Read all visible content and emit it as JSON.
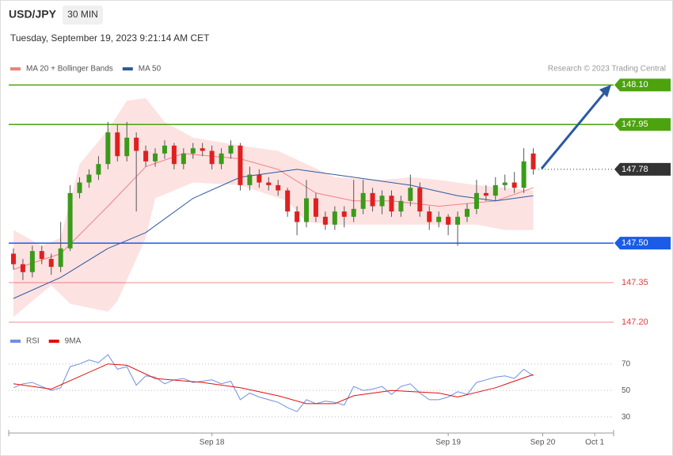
{
  "chart_data": {
    "type": "candlestick",
    "title": "USD/JPY",
    "timeframe": "30 MIN",
    "subtitle": "Tuesday, September 19, 2023 9:21:14 AM CET",
    "credit": "Research © 2023 Trading Central",
    "xlim": [
      -0.5,
      63.5
    ],
    "xticks": [
      {
        "value": 21,
        "label": "Sep 18"
      },
      {
        "value": 46,
        "label": "Sep 19"
      },
      {
        "value": 56,
        "label": "Sep 20"
      },
      {
        "value": 61.5,
        "label": "Oct 1"
      }
    ],
    "ylim": [
      147.17,
      148.14
    ],
    "candles": {
      "up_color": "#3a9b1a",
      "down_color": "#e02020",
      "open": [
        147.46,
        147.42,
        147.39,
        147.47,
        147.44,
        147.41,
        147.48,
        147.69,
        147.73,
        147.76,
        147.8,
        147.92,
        147.83,
        147.9,
        147.85,
        147.81,
        147.84,
        147.87,
        147.8,
        147.84,
        147.86,
        147.85,
        147.8,
        147.84,
        147.87,
        147.72,
        147.76,
        147.73,
        147.72,
        147.7,
        147.62,
        147.58,
        147.67,
        147.6,
        147.57,
        147.62,
        147.6,
        147.63,
        147.69,
        147.64,
        147.68,
        147.62,
        147.66,
        147.71,
        147.62,
        147.58,
        147.6,
        147.57,
        147.6,
        147.63,
        147.69,
        147.68,
        147.72,
        147.73,
        147.71,
        147.84
      ],
      "high": [
        147.48,
        147.44,
        147.49,
        147.49,
        147.46,
        147.58,
        147.72,
        147.75,
        147.78,
        147.83,
        147.96,
        147.95,
        147.96,
        147.92,
        147.87,
        147.86,
        147.89,
        147.88,
        147.86,
        147.88,
        147.88,
        147.87,
        147.86,
        147.89,
        147.88,
        147.79,
        147.78,
        147.75,
        147.74,
        147.71,
        147.64,
        147.74,
        147.69,
        147.62,
        147.64,
        147.64,
        147.74,
        147.74,
        147.71,
        147.7,
        147.7,
        147.68,
        147.76,
        147.73,
        147.64,
        147.62,
        147.61,
        147.62,
        147.65,
        147.74,
        147.72,
        147.75,
        147.76,
        147.77,
        147.86,
        147.86
      ],
      "low": [
        147.4,
        147.36,
        147.37,
        147.42,
        147.38,
        147.39,
        147.47,
        147.67,
        147.71,
        147.74,
        147.78,
        147.81,
        147.81,
        147.62,
        147.79,
        147.79,
        147.82,
        147.78,
        147.78,
        147.82,
        147.83,
        147.78,
        147.78,
        147.82,
        147.7,
        147.7,
        147.71,
        147.7,
        147.68,
        147.6,
        147.53,
        147.56,
        147.58,
        147.55,
        147.55,
        147.56,
        147.58,
        147.61,
        147.62,
        147.61,
        147.6,
        147.6,
        147.64,
        147.6,
        147.55,
        147.56,
        147.53,
        147.49,
        147.58,
        147.61,
        147.66,
        147.66,
        147.7,
        147.69,
        147.69,
        147.76
      ],
      "close": [
        147.42,
        147.39,
        147.47,
        147.44,
        147.41,
        147.48,
        147.69,
        147.73,
        147.76,
        147.8,
        147.92,
        147.83,
        147.9,
        147.85,
        147.81,
        147.84,
        147.87,
        147.8,
        147.84,
        147.86,
        147.85,
        147.8,
        147.84,
        147.87,
        147.72,
        147.76,
        147.73,
        147.72,
        147.7,
        147.62,
        147.58,
        147.67,
        147.6,
        147.57,
        147.62,
        147.6,
        147.63,
        147.69,
        147.64,
        147.68,
        147.62,
        147.66,
        147.71,
        147.62,
        147.58,
        147.6,
        147.57,
        147.6,
        147.63,
        147.69,
        147.68,
        147.72,
        147.73,
        147.71,
        147.81,
        147.78
      ]
    },
    "bollinger": {
      "fill": "#fde2e2",
      "upper": {
        "x": [
          0,
          3,
          5,
          7,
          10,
          12,
          14,
          16,
          19,
          24,
          28,
          31,
          34,
          39,
          42,
          45,
          49,
          52,
          55
        ],
        "values": [
          147.55,
          147.49,
          147.52,
          147.8,
          147.93,
          148.04,
          148.05,
          147.96,
          147.9,
          147.87,
          147.85,
          147.8,
          147.75,
          147.74,
          147.75,
          147.74,
          147.72,
          147.71,
          147.7
        ]
      },
      "lower": {
        "x": [
          0,
          4,
          6,
          10,
          11,
          14,
          15,
          19,
          24,
          29,
          31,
          34,
          39,
          44,
          49,
          52,
          55
        ],
        "values": [
          147.22,
          147.34,
          147.27,
          147.24,
          147.28,
          147.52,
          147.67,
          147.73,
          147.72,
          147.66,
          147.58,
          147.57,
          147.57,
          147.57,
          147.57,
          147.55,
          147.55
        ]
      }
    },
    "series": [
      {
        "name": "MA 20 + Bollinger Bands",
        "color": "#f08080",
        "x": [
          0,
          5,
          10,
          14,
          18,
          24,
          28,
          32,
          36,
          40,
          45,
          51,
          55
        ],
        "values": [
          147.4,
          147.46,
          147.64,
          147.79,
          147.84,
          147.82,
          147.78,
          147.69,
          147.66,
          147.66,
          147.64,
          147.66,
          147.71
        ]
      },
      {
        "name": "MA 50",
        "color": "#2c5aa0",
        "x": [
          0,
          5,
          10,
          14,
          19,
          24,
          30,
          36,
          42,
          47,
          51,
          55
        ],
        "values": [
          147.29,
          147.37,
          147.48,
          147.54,
          147.67,
          147.75,
          147.78,
          147.75,
          147.72,
          147.68,
          147.66,
          147.68
        ]
      }
    ],
    "levels": [
      {
        "value": 148.1,
        "label": "148.10",
        "color": "#4ca30d",
        "tag": true
      },
      {
        "value": 147.95,
        "label": "147.95",
        "color": "#4ca30d",
        "tag": true
      },
      {
        "value": 147.78,
        "label": "147.78",
        "color": "#333333",
        "tag": true,
        "dotted": true
      },
      {
        "value": 147.5,
        "label": "147.50",
        "color": "#1a5ce8",
        "tag": true
      },
      {
        "value": 147.35,
        "label": "147.35",
        "color": "#e04040",
        "tag": false
      },
      {
        "value": 147.2,
        "label": "147.20",
        "color": "#e04040",
        "tag": false
      }
    ],
    "rsi": {
      "ylim": [
        22,
        80
      ],
      "yticks": [
        70,
        50,
        30
      ],
      "series": [
        {
          "name": "RSI",
          "color": "#6f8fe0",
          "values": [
            52,
            55,
            56,
            53,
            50,
            52,
            68,
            70,
            73,
            71,
            77,
            66,
            68,
            54,
            61,
            60,
            55,
            58,
            59,
            56,
            57,
            58,
            55,
            57,
            43,
            48,
            45,
            43,
            41,
            37,
            34,
            43,
            40,
            42,
            41,
            39,
            53,
            50,
            51,
            53,
            47,
            53,
            55,
            48,
            43,
            43,
            45,
            49,
            47,
            56,
            58,
            60,
            61,
            59,
            66,
            61
          ]
        },
        {
          "name": "9MA",
          "color": "#e01010",
          "x": [
            0,
            4,
            10,
            12,
            15,
            20,
            24,
            28,
            31,
            34,
            36,
            40,
            45,
            47,
            51,
            55
          ],
          "values": [
            55,
            51,
            70,
            69,
            59,
            56,
            52,
            46,
            40,
            40,
            46,
            50,
            48,
            45,
            52,
            62
          ]
        }
      ]
    }
  }
}
